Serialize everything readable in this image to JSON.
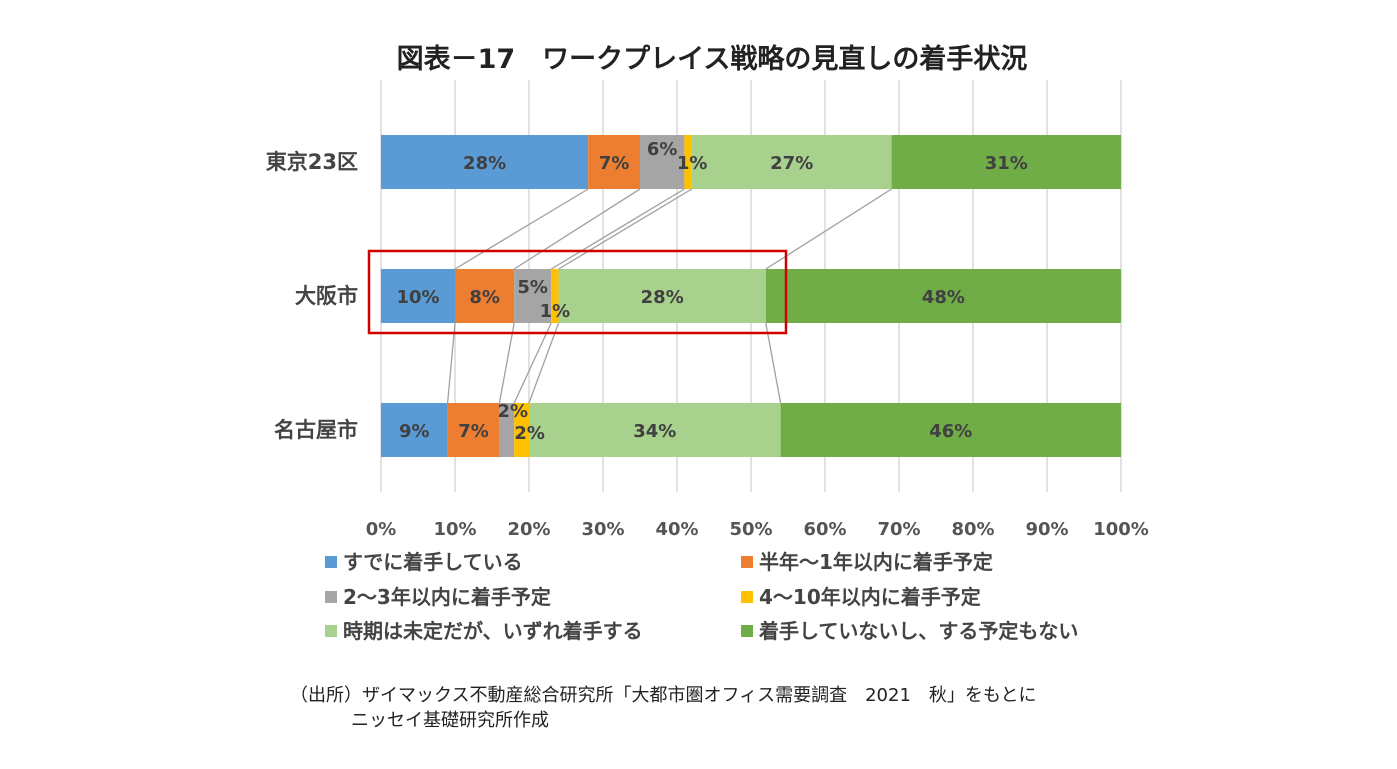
{
  "chart_data": {
    "type": "bar",
    "orientation": "horizontal",
    "stacked": true,
    "title": "図表－17　ワークプレイス戦略の見直しの着手状況",
    "categories": [
      "東京23区",
      "大阪市",
      "名古屋市"
    ],
    "series": [
      {
        "name": "すでに着手している",
        "color": "#5b9bd5",
        "values": [
          28,
          10,
          9
        ]
      },
      {
        "name": "半年～1年以内に着手予定",
        "color": "#ed7d31",
        "values": [
          7,
          8,
          7
        ]
      },
      {
        "name": "2～3年以内に着手予定",
        "color": "#a5a5a5",
        "values": [
          6,
          5,
          2
        ]
      },
      {
        "name": "4～10年以内に着手予定",
        "color": "#ffc000",
        "values": [
          1,
          1,
          2
        ]
      },
      {
        "name": "時期は未定だが、いずれ着手する",
        "color": "#a9d18e",
        "values": [
          27,
          28,
          34
        ]
      },
      {
        "name": "着手していないし、する予定もない",
        "color": "#70ad47",
        "values": [
          31,
          48,
          46
        ]
      }
    ],
    "data_labels": [
      [
        "28%",
        "7%",
        "6%",
        "1%",
        "27%",
        "31%"
      ],
      [
        "10%",
        "8%",
        "5%",
        "1%",
        "28%",
        "48%"
      ],
      [
        "9%",
        "7%",
        "2%",
        "2%",
        "34%",
        "46%"
      ]
    ],
    "xaxis": {
      "range": [
        0,
        100
      ],
      "ticks": [
        "0%",
        "10%",
        "20%",
        "30%",
        "40%",
        "50%",
        "60%",
        "70%",
        "80%",
        "90%",
        "100%"
      ],
      "grid": true
    },
    "series_lines": true,
    "highlight_category": "大阪市",
    "highlight_color": "#d00000",
    "legend_position": "bottom"
  },
  "source": {
    "line1": "（出所）ザイマックス不動産総合研究所「大都市圏オフィス需要調査　2021　秋」をもとに",
    "line2": "ニッセイ基礎研究所作成"
  }
}
